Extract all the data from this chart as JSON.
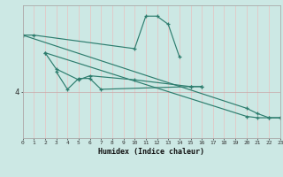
{
  "xlabel": "Humidex (Indice chaleur)",
  "bg_color": "#cce8e4",
  "plot_bg_color": "#cce8e4",
  "line_color": "#2d7d6e",
  "grid_color_v": "#e8c0c0",
  "grid_color_h": "#c8a8a8",
  "xlim": [
    0,
    23
  ],
  "ylim": [
    2.3,
    7.2
  ],
  "ytick_val": 4.0,
  "ytick_label": "4",
  "s1_x": [
    0,
    1,
    10,
    11,
    12,
    13,
    14
  ],
  "s1_y": [
    6.1,
    6.1,
    5.6,
    6.8,
    6.8,
    6.5,
    5.3
  ],
  "s2_x": [
    2,
    3,
    5,
    6,
    10,
    15,
    16
  ],
  "s2_y": [
    5.45,
    4.85,
    4.45,
    4.6,
    4.45,
    4.2,
    4.2
  ],
  "s3_x": [
    3,
    4,
    5,
    6,
    7,
    15,
    16
  ],
  "s3_y": [
    4.75,
    4.1,
    4.5,
    4.5,
    4.1,
    4.2,
    4.2
  ],
  "d1_x": [
    0,
    20,
    21,
    22,
    23
  ],
  "d1_y": [
    6.1,
    3.4,
    3.2,
    3.05,
    3.05
  ],
  "d2_x": [
    2,
    20,
    21,
    22,
    23
  ],
  "d2_y": [
    5.45,
    3.1,
    3.05,
    3.05,
    3.05
  ]
}
